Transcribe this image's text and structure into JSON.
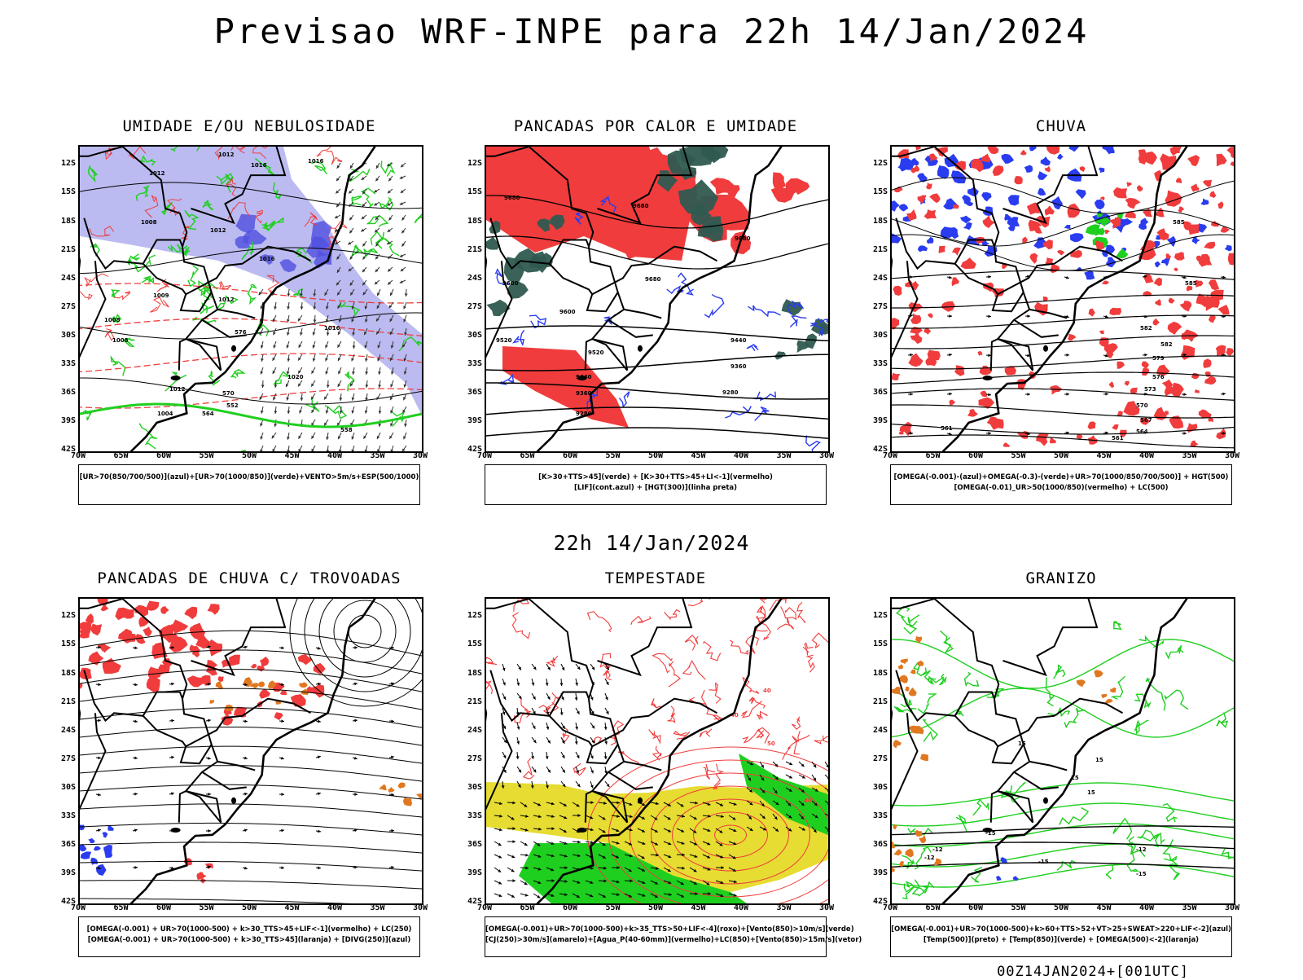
{
  "header": {
    "title": "Previsao WRF-INPE  para 22h 14/Jan/2024"
  },
  "middle_title": "22h 14/Jan/2024",
  "footer": "00Z14JAN2024+[001UTC]",
  "axes": {
    "lat_labels": [
      "12S",
      "15S",
      "18S",
      "21S",
      "24S",
      "27S",
      "30S",
      "33S",
      "36S",
      "39S",
      "42S"
    ],
    "lon_labels": [
      "70W",
      "65W",
      "60W",
      "55W",
      "50W",
      "45W",
      "40W",
      "35W",
      "30W"
    ]
  },
  "colors": {
    "red": "#f03c3c",
    "green": "#1fcf1f",
    "blue": "#2a3cf0",
    "lavender": "#b4b4f0",
    "darkteal": "#2f5a50",
    "yellow": "#e6dc32",
    "orange": "#e07820",
    "black": "#000000"
  },
  "panels": [
    {
      "id": "umidade",
      "title": "UMIDADE E/OU NEBULOSIDADE",
      "caption": [
        "[UR>70(850/700/500)](azul)+[UR>70(1000/850)](verde)+VENTO>5m/s+ESP(500/1000)"
      ],
      "contour_labels": [
        "1012",
        "1012",
        "1016",
        "1016",
        "1008",
        "1012",
        "1016",
        "1009",
        "1012",
        "1008",
        "1016",
        "1020",
        "576",
        "570",
        "564",
        "558",
        "552",
        "1004",
        "1008",
        "1012"
      ]
    },
    {
      "id": "pancadas_calor",
      "title": "PANCADAS POR CALOR E UMIDADE",
      "caption": [
        "[K>30+TTS>45](verde) + [K>30+TTS>45+LI<-1](vermelho)",
        "[LIF](cont.azul) + [HGT(300)](linha preta)"
      ],
      "contour_labels": [
        "9680",
        "9680",
        "9680",
        "9680",
        "9600",
        "9600",
        "9520",
        "9520",
        "9440",
        "9440",
        "9360",
        "9360",
        "9280",
        "9280"
      ]
    },
    {
      "id": "chuva",
      "title": "CHUVA",
      "caption": [
        "[OMEGA(-0.001)-(azul)+OMEGA(-0.3)-(verde)+UR>70(1000/850/700/500)] + HGT(500)",
        "[OMEGA(-0.01)_UR>50(1000/850)(vermelho) + LC(500)"
      ],
      "contour_labels": [
        "585",
        "585",
        "582",
        "582",
        "579",
        "576",
        "573",
        "570",
        "567",
        "564",
        "561",
        "561"
      ]
    },
    {
      "id": "pancadas_trovoadas",
      "title": "PANCADAS DE CHUVA C/ TROVOADAS",
      "caption": [
        "[OMEGA(-0.001) + UR>70(1000-500) + k>30_TTS>45+LIF<-1](vermelho) + LC(250)",
        "[OMEGA(-0.001) + UR>70(1000-500) + k>30_TTS>45](laranja) + [DIVG(250)](azul)"
      ],
      "contour_labels": []
    },
    {
      "id": "tempestade",
      "title": "TEMPESTADE",
      "caption": [
        "[OMEGA(-0.001)+UR>70(1000-500)+k>35_TTS>50+LIF<-4](roxo)+[Vento(850)>10m/s](verde)",
        "[CJ(250)>30m/s](amarelo)+[Agua_P(40-60mm)](vermelho)+LC(850)+[Vento(850)>15m/s](vetor)"
      ],
      "contour_labels": [
        "40",
        "40",
        "50",
        "40"
      ]
    },
    {
      "id": "granizo",
      "title": "GRANIZO",
      "caption": [
        "[OMEGA(-0.001)+UR>70(1000-500)+k>60+TTS>52+VT>25+SWEAT>220+LIF<-2](azul)",
        "[Temp(500)](preto) + [Temp(850)](verde) + [OMEGA(500)<-2](laranja)"
      ],
      "contour_labels": [
        "-15",
        "-12",
        "-15",
        "-12",
        "-15",
        "-12",
        "15",
        "15",
        "15",
        "15"
      ]
    }
  ]
}
